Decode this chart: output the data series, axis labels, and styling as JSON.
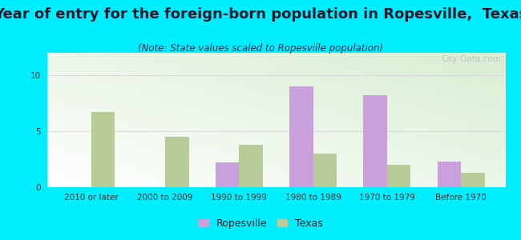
{
  "title": "Year of entry for the foreign-born population in Ropesville,  Texas",
  "subtitle": "(Note: State values scaled to Ropesville population)",
  "categories": [
    "2010 or later",
    "2000 to 2009",
    "1990 to 1999",
    "1980 to 1989",
    "1970 to 1979",
    "Before 1970"
  ],
  "ropesville": [
    0,
    0,
    2.2,
    9.0,
    8.2,
    2.3
  ],
  "texas": [
    6.7,
    4.5,
    3.8,
    3.0,
    2.0,
    1.3
  ],
  "ropesville_color": "#c9a0dc",
  "texas_color": "#b8cc9a",
  "background_color": "#00eeff",
  "plot_bg_color": "#e8f4e8",
  "ylim": [
    0,
    12
  ],
  "yticks": [
    0,
    5,
    10
  ],
  "bar_width": 0.32,
  "title_fontsize": 13,
  "subtitle_fontsize": 8.5,
  "tick_fontsize": 7.5,
  "legend_fontsize": 9,
  "watermark": "City-Data.com"
}
